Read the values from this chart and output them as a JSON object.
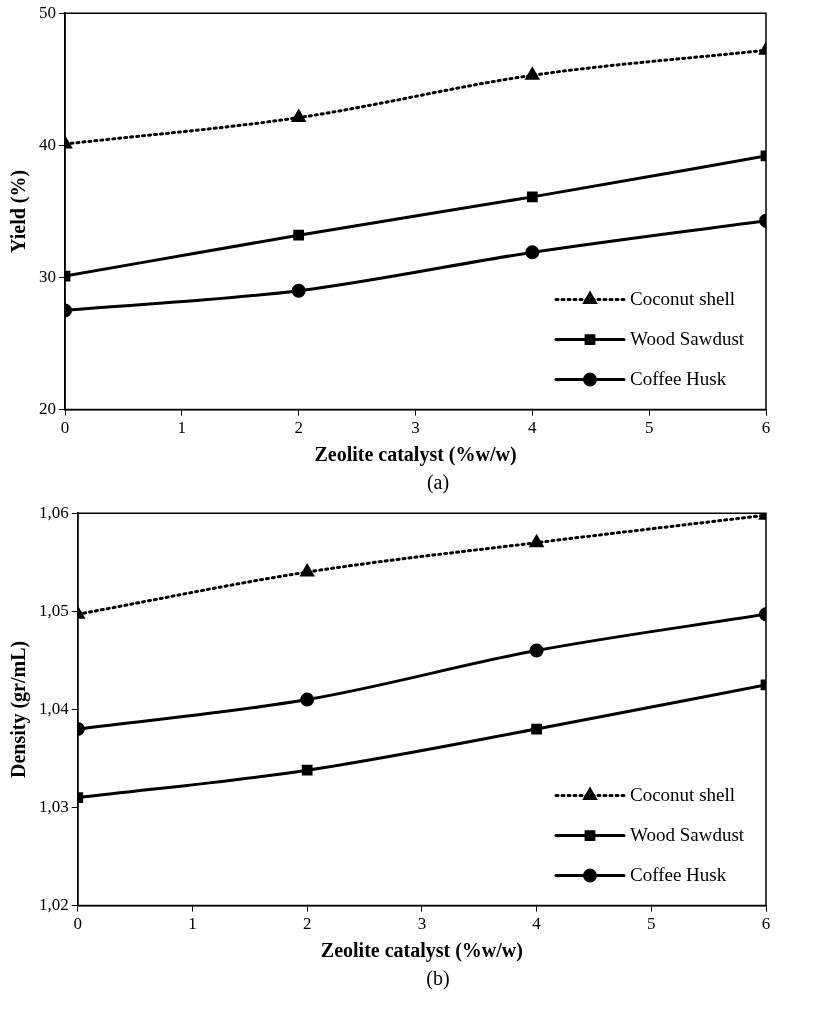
{
  "chart_data": [
    {
      "type": "line",
      "xlabel": "Zeolite catalyst (%w/w)",
      "ylabel": "Yield (%)",
      "annotations": [
        "(a)"
      ],
      "x": [
        0,
        2,
        4,
        6
      ],
      "xlim": [
        0,
        6
      ],
      "xticks": [
        0,
        1,
        2,
        3,
        4,
        5,
        6
      ],
      "ylim": [
        20,
        50
      ],
      "yticks": [
        20,
        30,
        40,
        50
      ],
      "grid": false,
      "legend": "bottom right",
      "series": [
        {
          "name": "Coconut shell",
          "color": "#000000",
          "marker": "triangle",
          "line_style": "dotted",
          "values": [
            40.1,
            42.1,
            45.3,
            47.2
          ]
        },
        {
          "name": "Wood Sawdust",
          "color": "#000000",
          "marker": "square",
          "line_style": "solid",
          "values": [
            30.1,
            33.2,
            36.1,
            39.2
          ]
        },
        {
          "name": "Coffee Husk",
          "color": "#000000",
          "marker": "circle",
          "line_style": "solid",
          "values": [
            27.5,
            29.0,
            31.9,
            34.3
          ]
        }
      ]
    },
    {
      "type": "line",
      "xlabel": "Zeolite catalyst (%w/w)",
      "ylabel": "Density (gr/mL)",
      "annotations": [
        "(b)"
      ],
      "x": [
        0,
        2,
        4,
        6
      ],
      "xlim": [
        0,
        6
      ],
      "xticks": [
        0,
        1,
        2,
        3,
        4,
        5,
        6
      ],
      "ylim": [
        1.02,
        1.06
      ],
      "yticks": [
        {
          "value": 1.02,
          "label": "1,02"
        },
        {
          "value": 1.03,
          "label": "1,03"
        },
        {
          "value": 1.04,
          "label": "1,04"
        },
        {
          "value": 1.05,
          "label": "1,05"
        },
        {
          "value": 1.06,
          "label": "1,06"
        }
      ],
      "grid": false,
      "legend": "bottom right",
      "series": [
        {
          "name": "Coconut shell",
          "color": "#000000",
          "marker": "triangle",
          "line_style": "dotted",
          "values": [
            1.0497,
            1.054,
            1.057,
            1.0598
          ]
        },
        {
          "name": "Wood Sawdust",
          "color": "#000000",
          "marker": "square",
          "line_style": "solid",
          "values": [
            1.031,
            1.0338,
            1.038,
            1.0425
          ]
        },
        {
          "name": "Coffee Husk",
          "color": "#000000",
          "marker": "circle",
          "line_style": "solid",
          "values": [
            1.038,
            1.041,
            1.046,
            1.0497
          ]
        }
      ]
    }
  ]
}
